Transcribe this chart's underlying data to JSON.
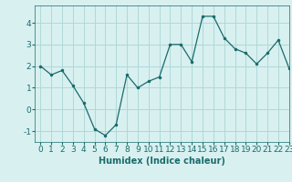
{
  "x": [
    0,
    1,
    2,
    3,
    4,
    5,
    6,
    7,
    8,
    9,
    10,
    11,
    12,
    13,
    14,
    15,
    16,
    17,
    18,
    19,
    20,
    21,
    22,
    23
  ],
  "y": [
    2.0,
    1.6,
    1.8,
    1.1,
    0.3,
    -0.9,
    -1.2,
    -0.7,
    1.6,
    1.0,
    1.3,
    1.5,
    3.0,
    3.0,
    2.2,
    4.3,
    4.3,
    3.3,
    2.8,
    2.6,
    2.1,
    2.6,
    3.2,
    1.9
  ],
  "line_color": "#1a6b6b",
  "marker": ".",
  "marker_size": 3,
  "bg_color": "#d8f0f0",
  "grid_color": "#b0d8d8",
  "xlabel": "Humidex (Indice chaleur)",
  "xlim": [
    -0.5,
    23
  ],
  "ylim": [
    -1.5,
    4.8
  ],
  "yticks": [
    -1,
    0,
    1,
    2,
    3,
    4
  ],
  "xticks": [
    0,
    1,
    2,
    3,
    4,
    5,
    6,
    7,
    8,
    9,
    10,
    11,
    12,
    13,
    14,
    15,
    16,
    17,
    18,
    19,
    20,
    21,
    22,
    23
  ],
  "xlabel_fontsize": 7,
  "tick_fontsize": 6.5
}
